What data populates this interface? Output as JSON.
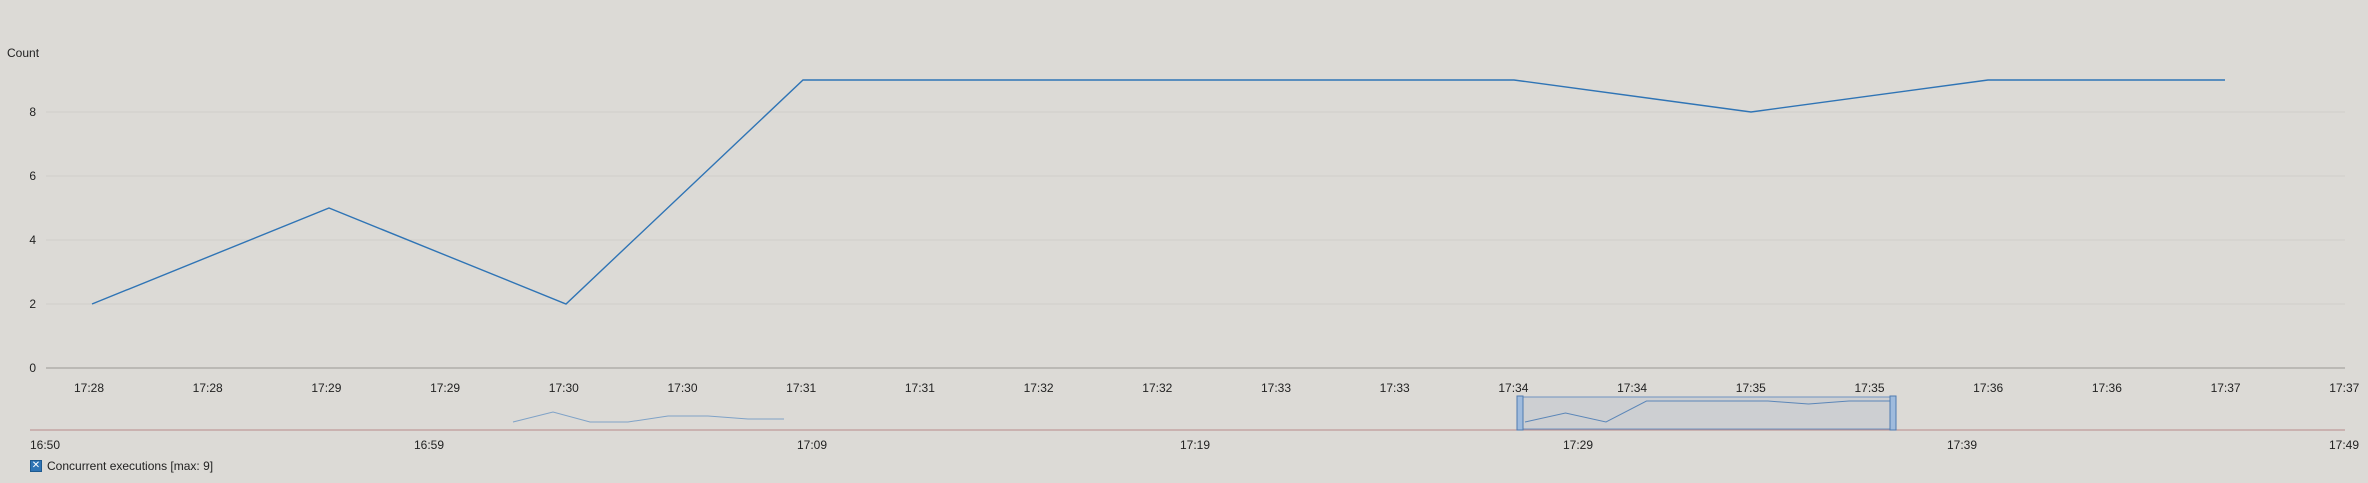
{
  "chart_data": {
    "type": "line",
    "ylabel": "Count",
    "ylim": [
      0,
      10
    ],
    "y_ticks": [
      0,
      2,
      4,
      6,
      8
    ],
    "x_tick_labels": [
      "17:28",
      "17:28",
      "17:29",
      "17:29",
      "17:30",
      "17:30",
      "17:31",
      "17:31",
      "17:32",
      "17:32",
      "17:33",
      "17:33",
      "17:34",
      "17:34",
      "17:35",
      "17:35",
      "17:36",
      "17:36",
      "17:37",
      "17:37"
    ],
    "series": [
      {
        "name": "Concurrent executions [max: 9]",
        "color": "#2f74b5",
        "x": [
          "17:28",
          "17:29",
          "17:30",
          "17:31",
          "17:32",
          "17:33",
          "17:34",
          "17:35",
          "17:36",
          "17:37"
        ],
        "values": [
          2,
          5,
          2,
          9,
          9,
          9,
          9,
          8,
          9,
          9
        ]
      }
    ],
    "grid": true,
    "legend_position": "bottom-left",
    "navigator": {
      "tick_labels": [
        "16:50",
        "16:59",
        "17:09",
        "17:19",
        "17:29",
        "17:39",
        "17:49"
      ],
      "range": [
        "16:50",
        "17:49"
      ],
      "selected_range": [
        "17:28",
        "17:37"
      ]
    }
  },
  "legend": {
    "toggle_icon": "checkbox-x-icon",
    "label": "Concurrent executions [max: 9]"
  }
}
